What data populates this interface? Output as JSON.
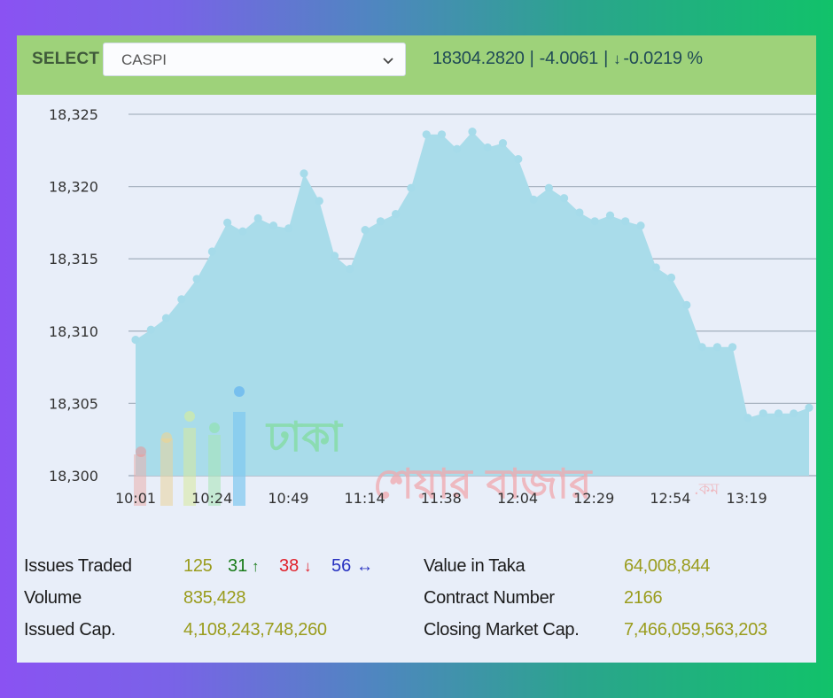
{
  "header": {
    "select_label": "SELECT",
    "selected_index": "CASPI",
    "value": "18304.2820",
    "change": "-4.0061",
    "change_pct": "-0.0219 %",
    "separator": "|",
    "down_arrow": "↓"
  },
  "watermark": {
    "line1": "ঢাকা",
    "line2": "শেয়ার বাজার",
    "suffix": ".কম"
  },
  "chart_data": {
    "type": "area",
    "ylim": [
      18300,
      18326
    ],
    "yticks": [
      "18,300",
      "18,305",
      "18,310",
      "18,315",
      "18,320",
      "18,325"
    ],
    "ytick_values": [
      18300,
      18305,
      18310,
      18315,
      18320,
      18325
    ],
    "xticks": [
      "10:01",
      "10:24",
      "10:49",
      "11:14",
      "11:38",
      "12:04",
      "12:29",
      "12:54",
      "13:19"
    ],
    "grid": true,
    "color_fill": "#a9dcea",
    "color_point": "#a9dcea",
    "values": [
      18309.4,
      18310.1,
      18310.9,
      18312.2,
      18313.6,
      18315.5,
      18317.5,
      18316.9,
      18317.8,
      18317.3,
      18317.1,
      18320.9,
      18319.0,
      18315.2,
      18314.3,
      18317.0,
      18317.6,
      18318.1,
      18319.9,
      18323.6,
      18323.6,
      18322.6,
      18323.8,
      18322.7,
      18323.0,
      18321.9,
      18319.1,
      18319.9,
      18319.2,
      18318.2,
      18317.6,
      18318.0,
      18317.6,
      18317.3,
      18314.4,
      18313.7,
      18311.8,
      18308.9,
      18308.9,
      18308.9,
      18304.0,
      18304.3,
      18304.3,
      18304.3,
      18304.7
    ]
  },
  "summary": {
    "issues_traded_label": "Issues Traded",
    "issues_total": "125",
    "issues_up": "31",
    "issues_down": "38",
    "issues_unchanged": "56",
    "up_arrow": "↑",
    "down_arrow": "↓",
    "unch_arrow": "↔",
    "volume_label": "Volume",
    "volume": "835,428",
    "issued_cap_label": "Issued Cap.",
    "issued_cap": "4,108,243,748,260",
    "value_taka_label": "Value in Taka",
    "value_taka": "64,008,844",
    "contract_label": "Contract Number",
    "contract": "2166",
    "closing_cap_label": "Closing Market Cap.",
    "closing_cap": "7,466,059,563,203"
  }
}
